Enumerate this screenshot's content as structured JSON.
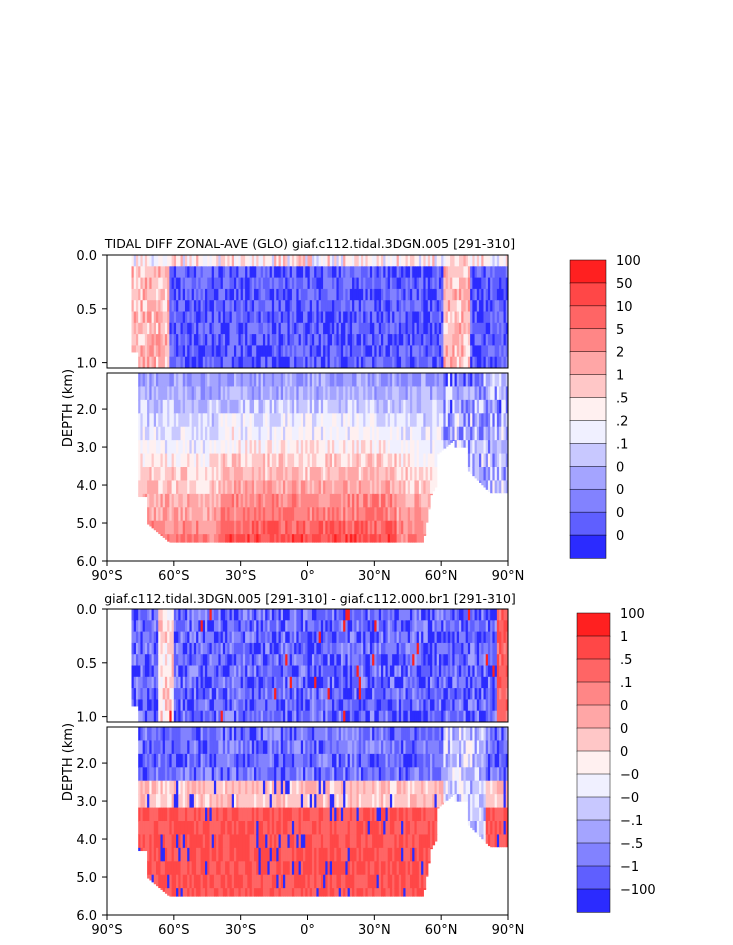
{
  "chart_data": [
    {
      "type": "heatmap",
      "title": "TIDAL DIFF ZONAL-AVE (GLO) giaf.c112.tidal.3DGN.005 [291-310]",
      "ylabel": "DEPTH (km)",
      "xlabel": "",
      "x_ticks": [
        "90°S",
        "60°S",
        "30°S",
        "0°",
        "30°N",
        "60°N",
        "90°N"
      ],
      "x_tick_values": [
        -90,
        -60,
        -30,
        0,
        30,
        60,
        90
      ],
      "upper_y_ticks": [
        "0.0",
        "0.5",
        "1.0"
      ],
      "upper_y_values": [
        0.0,
        0.5,
        1.0
      ],
      "lower_y_ticks": [
        "2.0",
        "3.0",
        "4.0",
        "5.0",
        "6.0"
      ],
      "lower_y_values": [
        2.0,
        3.0,
        4.0,
        5.0,
        6.0
      ],
      "xlim": [
        -90,
        90
      ],
      "upper_ylim": [
        0.0,
        1.05
      ],
      "lower_ylim": [
        1.05,
        6.0
      ],
      "colorbar_labels": [
        "100",
        "50",
        "10",
        "5",
        "2",
        "1",
        ".5",
        ".2",
        ".1",
        "0",
        "0",
        "0",
        "0"
      ],
      "colorbar_colors": [
        "#ff2020",
        "#ff4747",
        "#ff6565",
        "#ff8686",
        "#ffa6a6",
        "#ffc7c7",
        "#fff0f0",
        "#f0f0ff",
        "#c8c8ff",
        "#a4a4ff",
        "#8282ff",
        "#5f5fff",
        "#2b2bff"
      ]
    },
    {
      "type": "heatmap",
      "title": "giaf.c112.tidal.3DGN.005 [291-310] - giaf.c112.000.br1 [291-310]",
      "ylabel": "DEPTH (km)",
      "xlabel": "",
      "x_ticks": [
        "90°S",
        "60°S",
        "30°S",
        "0°",
        "30°N",
        "60°N",
        "90°N"
      ],
      "x_tick_values": [
        -90,
        -60,
        -30,
        0,
        30,
        60,
        90
      ],
      "upper_y_ticks": [
        "0.0",
        "0.5",
        "1.0"
      ],
      "upper_y_values": [
        0.0,
        0.5,
        1.0
      ],
      "lower_y_ticks": [
        "2.0",
        "3.0",
        "4.0",
        "5.0",
        "6.0"
      ],
      "lower_y_values": [
        2.0,
        3.0,
        4.0,
        5.0,
        6.0
      ],
      "xlim": [
        -90,
        90
      ],
      "upper_ylim": [
        0.0,
        1.05
      ],
      "lower_ylim": [
        1.05,
        6.0
      ],
      "colorbar_labels": [
        "100",
        "1",
        ".5",
        ".1",
        "0",
        "0",
        "0",
        "−0",
        "−0",
        "−.1",
        "−.5",
        "−1",
        "−100"
      ],
      "colorbar_colors": [
        "#ff2020",
        "#ff4747",
        "#ff6565",
        "#ff8686",
        "#ffa6a6",
        "#ffc7c7",
        "#fff0f0",
        "#f0f0ff",
        "#c8c8ff",
        "#a4a4ff",
        "#8282ff",
        "#5f5fff",
        "#2b2bff"
      ]
    }
  ]
}
